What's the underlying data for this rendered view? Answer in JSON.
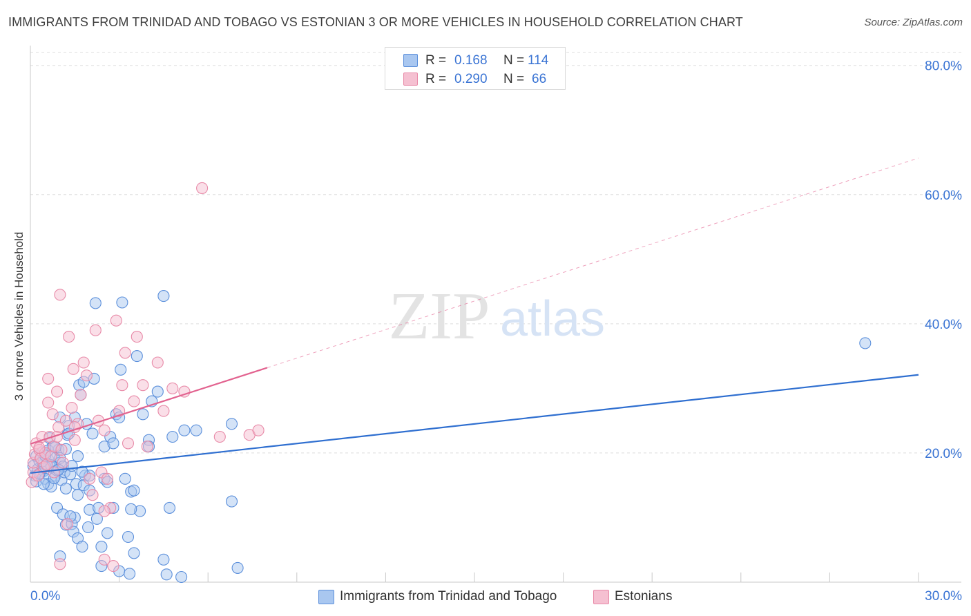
{
  "header": {
    "title": "IMMIGRANTS FROM TRINIDAD AND TOBAGO VS ESTONIAN 3 OR MORE VEHICLES IN HOUSEHOLD CORRELATION CHART",
    "source": "Source: ZipAtlas.com"
  },
  "watermark": {
    "zip": "ZIP",
    "atlas": "atlas"
  },
  "legend": {
    "r_label": "R =",
    "n_label": "N =",
    "rows": [
      {
        "r": "0.168",
        "n": "114"
      },
      {
        "r": "0.290",
        "n": "66"
      }
    ]
  },
  "colors": {
    "blue_fill": "#a9c7f0",
    "blue_stroke": "#5b8fdb",
    "blue_line": "#2f6fd0",
    "pink_fill": "#f5c0d1",
    "pink_stroke": "#e88aa8",
    "pink_line": "#e2628f",
    "axis_text": "#3a74d4",
    "grid": "#dddddd"
  },
  "chart_data": {
    "type": "scatter",
    "title": "IMMIGRANTS FROM TRINIDAD AND TOBAGO VS ESTONIAN 3 OR MORE VEHICLES IN HOUSEHOLD CORRELATION CHART",
    "xlabel": "",
    "ylabel": "3 or more Vehicles in Household",
    "xlim": [
      0,
      30
    ],
    "ylim": [
      0,
      82
    ],
    "x_tick_labels": [
      "0.0%",
      "30.0%"
    ],
    "y_ticks": [
      20,
      40,
      60,
      80
    ],
    "y_tick_labels": [
      "20.0%",
      "40.0%",
      "60.0%",
      "80.0%"
    ],
    "series": [
      {
        "name": "Immigrants from Trinidad and Tobago",
        "color": "#5b8fdb",
        "r": 0.168,
        "n": 114,
        "trend": {
          "x": [
            0,
            30
          ],
          "y": [
            16.9,
            32.1
          ],
          "dashed_x": []
        },
        "points": [
          [
            0.1,
            18.0
          ],
          [
            0.15,
            16.5
          ],
          [
            0.2,
            19.5
          ],
          [
            0.2,
            15.6
          ],
          [
            0.25,
            17.5
          ],
          [
            0.3,
            18.8
          ],
          [
            0.35,
            16.9
          ],
          [
            0.4,
            20.1
          ],
          [
            0.45,
            17.2
          ],
          [
            0.5,
            16.0
          ],
          [
            0.55,
            18.3
          ],
          [
            0.6,
            15.2
          ],
          [
            0.6,
            19.0
          ],
          [
            0.7,
            14.8
          ],
          [
            0.7,
            17.8
          ],
          [
            0.75,
            21.0
          ],
          [
            0.8,
            19.5
          ],
          [
            0.85,
            16.5
          ],
          [
            0.9,
            11.5
          ],
          [
            0.95,
            20.5
          ],
          [
            1.0,
            18.5
          ],
          [
            1.0,
            25.5
          ],
          [
            1.05,
            15.8
          ],
          [
            1.1,
            10.5
          ],
          [
            1.15,
            17.0
          ],
          [
            1.2,
            14.5
          ],
          [
            1.2,
            8.9
          ],
          [
            1.25,
            22.8
          ],
          [
            1.3,
            24.2
          ],
          [
            1.35,
            16.7
          ],
          [
            1.4,
            9.0
          ],
          [
            1.45,
            7.8
          ],
          [
            1.5,
            25.5
          ],
          [
            1.5,
            10.0
          ],
          [
            1.55,
            15.2
          ],
          [
            1.6,
            6.8
          ],
          [
            1.6,
            19.5
          ],
          [
            1.65,
            30.5
          ],
          [
            1.7,
            29.0
          ],
          [
            1.75,
            5.5
          ],
          [
            1.8,
            31.0
          ],
          [
            1.85,
            16.5
          ],
          [
            1.9,
            24.5
          ],
          [
            1.95,
            8.5
          ],
          [
            2.0,
            11.2
          ],
          [
            2.0,
            16.5
          ],
          [
            2.1,
            23.0
          ],
          [
            2.15,
            31.5
          ],
          [
            2.2,
            43.2
          ],
          [
            2.3,
            11.5
          ],
          [
            2.4,
            2.5
          ],
          [
            2.4,
            5.5
          ],
          [
            2.5,
            21.0
          ],
          [
            2.5,
            16.0
          ],
          [
            2.6,
            15.5
          ],
          [
            2.7,
            22.5
          ],
          [
            2.8,
            11.5
          ],
          [
            2.9,
            26.0
          ],
          [
            3.0,
            1.7
          ],
          [
            3.0,
            25.5
          ],
          [
            3.05,
            32.9
          ],
          [
            3.1,
            43.3
          ],
          [
            3.2,
            16.0
          ],
          [
            3.3,
            7.0
          ],
          [
            3.35,
            1.3
          ],
          [
            3.4,
            14.0
          ],
          [
            3.5,
            4.5
          ],
          [
            3.6,
            35.0
          ],
          [
            3.7,
            11.0
          ],
          [
            3.8,
            26.0
          ],
          [
            4.0,
            22.0
          ],
          [
            4.0,
            21.0
          ],
          [
            4.1,
            28.0
          ],
          [
            4.3,
            29.5
          ],
          [
            4.5,
            44.3
          ],
          [
            4.6,
            1.2
          ],
          [
            4.5,
            3.5
          ],
          [
            4.7,
            11.5
          ],
          [
            4.8,
            22.5
          ],
          [
            5.1,
            0.8
          ],
          [
            5.2,
            23.5
          ],
          [
            5.6,
            23.5
          ],
          [
            6.8,
            24.5
          ],
          [
            6.8,
            12.5
          ],
          [
            7.0,
            2.2
          ],
          [
            28.2,
            37.0
          ],
          [
            0.3,
            16.8
          ],
          [
            0.5,
            17.9
          ],
          [
            0.6,
            20.4
          ],
          [
            0.7,
            18.1
          ],
          [
            0.8,
            16.1
          ],
          [
            0.9,
            17.3
          ],
          [
            1.0,
            19.2
          ],
          [
            1.1,
            17.9
          ],
          [
            1.2,
            20.6
          ],
          [
            1.3,
            23.0
          ],
          [
            0.4,
            18.7
          ],
          [
            0.5,
            19.6
          ],
          [
            0.65,
            22.3
          ],
          [
            0.85,
            20.9
          ],
          [
            1.4,
            18.0
          ],
          [
            1.6,
            13.5
          ],
          [
            1.8,
            15.0
          ],
          [
            2.0,
            14.2
          ],
          [
            1.75,
            17.1
          ],
          [
            0.45,
            15.2
          ],
          [
            1.0,
            4.0
          ],
          [
            2.6,
            7.6
          ],
          [
            3.4,
            11.3
          ],
          [
            3.5,
            14.2
          ],
          [
            2.8,
            21.5
          ],
          [
            1.35,
            10.2
          ],
          [
            2.25,
            9.8
          ],
          [
            0.95,
            17.4
          ]
        ]
      },
      {
        "name": "Estonians",
        "color": "#e88aa8",
        "r": 0.29,
        "n": 66,
        "trend": {
          "x": [
            0,
            8.0
          ],
          "y": [
            21.4,
            33.2
          ],
          "dashed_x": [
            8.0,
            30.0
          ]
        },
        "points": [
          [
            0.05,
            15.5
          ],
          [
            0.1,
            17.0
          ],
          [
            0.1,
            18.5
          ],
          [
            0.15,
            19.8
          ],
          [
            0.2,
            21.5
          ],
          [
            0.25,
            16.5
          ],
          [
            0.3,
            20.5
          ],
          [
            0.35,
            19.2
          ],
          [
            0.4,
            22.5
          ],
          [
            0.45,
            17.8
          ],
          [
            0.5,
            20.0
          ],
          [
            0.55,
            18.2
          ],
          [
            0.6,
            31.5
          ],
          [
            0.6,
            27.8
          ],
          [
            0.65,
            22.5
          ],
          [
            0.7,
            19.5
          ],
          [
            0.75,
            26.0
          ],
          [
            0.8,
            21.0
          ],
          [
            0.8,
            17.0
          ],
          [
            0.9,
            29.5
          ],
          [
            0.95,
            24.0
          ],
          [
            1.0,
            44.5
          ],
          [
            1.05,
            20.5
          ],
          [
            1.1,
            18.5
          ],
          [
            1.2,
            25.0
          ],
          [
            1.25,
            9.0
          ],
          [
            1.3,
            38.0
          ],
          [
            1.4,
            27.0
          ],
          [
            1.45,
            33.0
          ],
          [
            1.5,
            22.0
          ],
          [
            1.6,
            24.5
          ],
          [
            1.7,
            29.0
          ],
          [
            1.8,
            34.0
          ],
          [
            1.9,
            32.0
          ],
          [
            2.0,
            16.0
          ],
          [
            2.1,
            13.5
          ],
          [
            2.2,
            39.0
          ],
          [
            2.3,
            25.0
          ],
          [
            2.4,
            17.0
          ],
          [
            2.5,
            23.5
          ],
          [
            2.6,
            16.0
          ],
          [
            2.7,
            11.5
          ],
          [
            2.8,
            2.5
          ],
          [
            2.9,
            40.5
          ],
          [
            3.0,
            26.5
          ],
          [
            3.1,
            30.5
          ],
          [
            3.2,
            35.5
          ],
          [
            3.3,
            21.5
          ],
          [
            3.5,
            28.0
          ],
          [
            3.6,
            38.0
          ],
          [
            3.8,
            30.5
          ],
          [
            3.95,
            21.0
          ],
          [
            4.3,
            34.0
          ],
          [
            4.5,
            26.5
          ],
          [
            4.8,
            30.0
          ],
          [
            5.2,
            29.5
          ],
          [
            5.8,
            61.0
          ],
          [
            6.4,
            22.5
          ],
          [
            7.4,
            22.8
          ],
          [
            7.7,
            23.5
          ],
          [
            1.0,
            2.8
          ],
          [
            2.5,
            3.5
          ],
          [
            1.5,
            24.0
          ],
          [
            0.3,
            20.8
          ],
          [
            0.9,
            22.5
          ],
          [
            2.5,
            11.0
          ]
        ]
      }
    ]
  }
}
